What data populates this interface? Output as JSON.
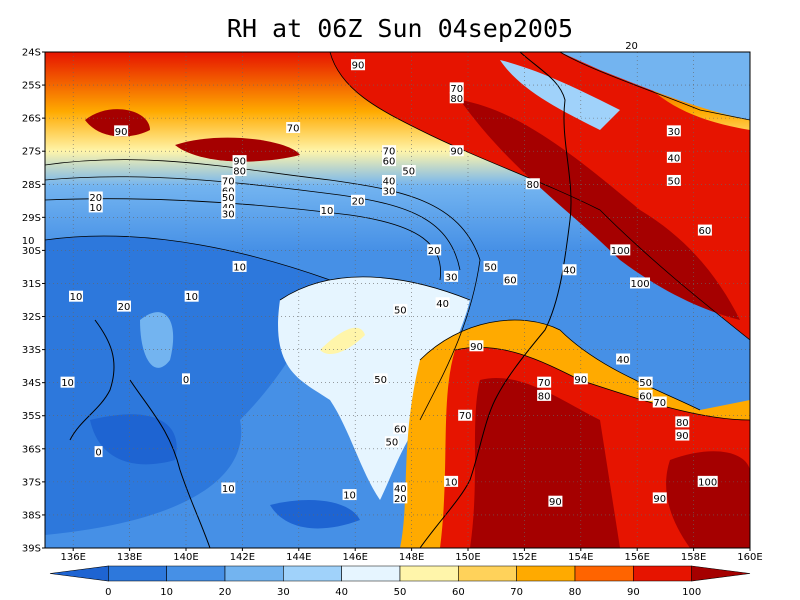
{
  "title": "RH at 06Z Sun 04sep2005",
  "lat_labels": [
    "24S",
    "25S",
    "26S",
    "27S",
    "28S",
    "29S",
    "30S",
    "31S",
    "32S",
    "33S",
    "34S",
    "35S",
    "36S",
    "37S",
    "38S",
    "39S"
  ],
  "lon_labels": [
    "136E",
    "138E",
    "140E",
    "142E",
    "144E",
    "146E",
    "148E",
    "150E",
    "152E",
    "154E",
    "156E",
    "158E",
    "160E"
  ],
  "colorbar": {
    "labels": [
      "0",
      "10",
      "20",
      "30",
      "40",
      "50",
      "60",
      "70",
      "80",
      "90",
      "100"
    ],
    "colors": [
      "#1e64d2",
      "#2d78dc",
      "#4690e6",
      "#73b4f0",
      "#a0d2fa",
      "#e6f5ff",
      "#fff5aa",
      "#ffd25a",
      "#ffaa00",
      "#ff6400",
      "#e61400",
      "#a50000"
    ]
  },
  "contour_labels": [
    {
      "text": "90",
      "lon": 146.1,
      "lat": 24.4
    },
    {
      "text": "90",
      "lon": 137.7,
      "lat": 26.4
    },
    {
      "text": "70",
      "lon": 143.8,
      "lat": 26.3
    },
    {
      "text": "70",
      "lon": 149.6,
      "lat": 25.1
    },
    {
      "text": "80",
      "lon": 149.6,
      "lat": 25.4
    },
    {
      "text": "90",
      "lon": 149.6,
      "lat": 27.0
    },
    {
      "text": "20",
      "lon": 155.8,
      "lat": 23.8
    },
    {
      "text": "30",
      "lon": 157.3,
      "lat": 26.4
    },
    {
      "text": "40",
      "lon": 157.3,
      "lat": 27.2
    },
    {
      "text": "50",
      "lon": 157.3,
      "lat": 27.9
    },
    {
      "text": "60",
      "lon": 158.4,
      "lat": 29.4
    },
    {
      "text": "90",
      "lon": 141.9,
      "lat": 27.3
    },
    {
      "text": "80",
      "lon": 141.9,
      "lat": 27.6
    },
    {
      "text": "70",
      "lon": 141.5,
      "lat": 27.9
    },
    {
      "text": "60",
      "lon": 141.5,
      "lat": 28.2
    },
    {
      "text": "50",
      "lon": 141.5,
      "lat": 28.4
    },
    {
      "text": "40",
      "lon": 141.5,
      "lat": 28.7
    },
    {
      "text": "30",
      "lon": 141.5,
      "lat": 28.9
    },
    {
      "text": "70",
      "lon": 147.2,
      "lat": 27.0
    },
    {
      "text": "60",
      "lon": 147.2,
      "lat": 27.3
    },
    {
      "text": "50",
      "lon": 147.9,
      "lat": 27.6
    },
    {
      "text": "40",
      "lon": 147.2,
      "lat": 27.9
    },
    {
      "text": "30",
      "lon": 147.2,
      "lat": 28.2
    },
    {
      "text": "20",
      "lon": 136.8,
      "lat": 28.4
    },
    {
      "text": "10",
      "lon": 136.8,
      "lat": 28.7
    },
    {
      "text": "20",
      "lon": 146.1,
      "lat": 28.5
    },
    {
      "text": "10",
      "lon": 145.0,
      "lat": 28.8
    },
    {
      "text": "80",
      "lon": 152.3,
      "lat": 28.0
    },
    {
      "text": "10",
      "lon": 134.4,
      "lat": 29.7
    },
    {
      "text": "10",
      "lon": 141.9,
      "lat": 30.5
    },
    {
      "text": "20",
      "lon": 148.8,
      "lat": 30.0
    },
    {
      "text": "100",
      "lon": 155.4,
      "lat": 30.0
    },
    {
      "text": "100",
      "lon": 156.1,
      "lat": 31.0
    },
    {
      "text": "50",
      "lon": 150.8,
      "lat": 30.5
    },
    {
      "text": "60",
      "lon": 151.5,
      "lat": 30.9
    },
    {
      "text": "40",
      "lon": 153.6,
      "lat": 30.6
    },
    {
      "text": "30",
      "lon": 149.4,
      "lat": 30.8
    },
    {
      "text": "40",
      "lon": 149.1,
      "lat": 31.6
    },
    {
      "text": "10",
      "lon": 136.1,
      "lat": 31.4
    },
    {
      "text": "20",
      "lon": 137.8,
      "lat": 31.7
    },
    {
      "text": "10",
      "lon": 140.2,
      "lat": 31.4
    },
    {
      "text": "50",
      "lon": 147.6,
      "lat": 31.8
    },
    {
      "text": "90",
      "lon": 150.3,
      "lat": 32.9
    },
    {
      "text": "40",
      "lon": 155.5,
      "lat": 33.3
    },
    {
      "text": "0",
      "lon": 140.0,
      "lat": 33.9
    },
    {
      "text": "10",
      "lon": 135.8,
      "lat": 34.0
    },
    {
      "text": "50",
      "lon": 146.9,
      "lat": 33.9
    },
    {
      "text": "70",
      "lon": 152.7,
      "lat": 34.0
    },
    {
      "text": "80",
      "lon": 152.7,
      "lat": 34.4
    },
    {
      "text": "90",
      "lon": 154.0,
      "lat": 33.9
    },
    {
      "text": "50",
      "lon": 156.3,
      "lat": 34.0
    },
    {
      "text": "60",
      "lon": 156.3,
      "lat": 34.4
    },
    {
      "text": "70",
      "lon": 156.8,
      "lat": 34.6
    },
    {
      "text": "70",
      "lon": 149.9,
      "lat": 35.0
    },
    {
      "text": "60",
      "lon": 147.6,
      "lat": 35.4
    },
    {
      "text": "50",
      "lon": 147.3,
      "lat": 35.8
    },
    {
      "text": "80",
      "lon": 157.6,
      "lat": 35.2
    },
    {
      "text": "90",
      "lon": 157.6,
      "lat": 35.6
    },
    {
      "text": "0",
      "lon": 136.9,
      "lat": 36.1
    },
    {
      "text": "100",
      "lon": 158.5,
      "lat": 37.0
    },
    {
      "text": "10",
      "lon": 149.4,
      "lat": 37.0
    },
    {
      "text": "10",
      "lon": 141.5,
      "lat": 37.2
    },
    {
      "text": "40",
      "lon": 147.6,
      "lat": 37.2
    },
    {
      "text": "20",
      "lon": 147.6,
      "lat": 37.5
    },
    {
      "text": "10",
      "lon": 145.8,
      "lat": 37.4
    },
    {
      "text": "90",
      "lon": 153.1,
      "lat": 37.6
    },
    {
      "text": "90",
      "lon": 156.8,
      "lat": 37.5
    }
  ]
}
